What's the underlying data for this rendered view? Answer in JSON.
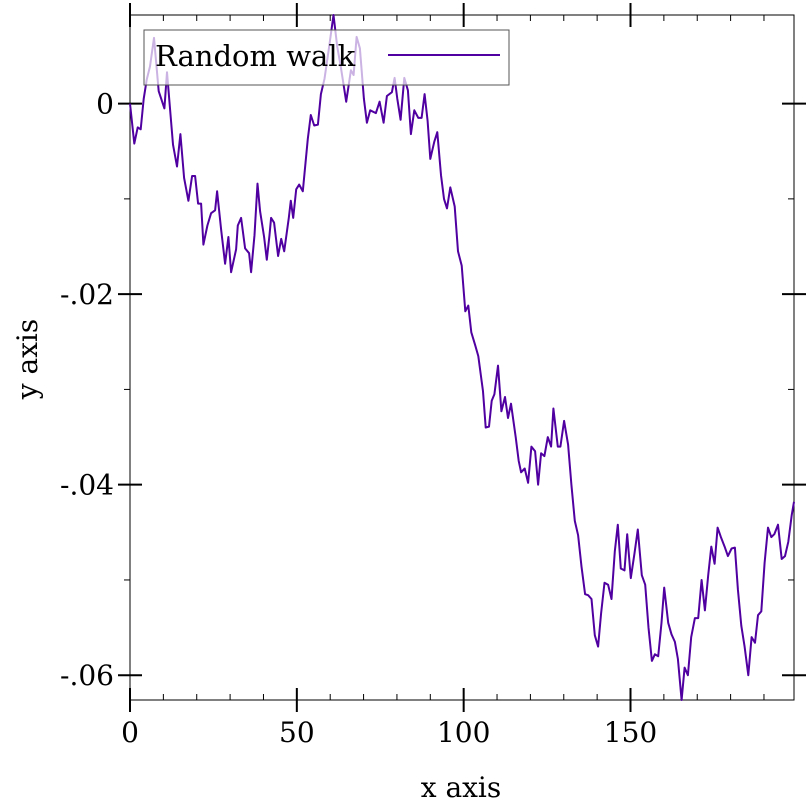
{
  "chart_data": {
    "type": "line",
    "xlabel": "x axis",
    "ylabel": "y axis",
    "xlim": [
      0,
      199
    ],
    "ylim": [
      -0.0626,
      0.0093
    ],
    "x_ticks": [
      {
        "value": 0,
        "label": "0"
      },
      {
        "value": 50,
        "label": "50"
      },
      {
        "value": 100,
        "label": "100"
      },
      {
        "value": 150,
        "label": "150"
      }
    ],
    "y_ticks": [
      {
        "value": 0,
        "label": "0"
      },
      {
        "value": -0.02,
        "label": "-.02"
      },
      {
        "value": -0.04,
        "label": "-.04"
      },
      {
        "value": -0.06,
        "label": "-.06"
      }
    ],
    "x_minor_step": 10,
    "y_minor_step": 0.01,
    "grid": false,
    "legend_position": "top-left",
    "series": [
      {
        "name": "Random walk",
        "color": "#5000a0",
        "points": [
          [
            0.0,
            0.0
          ],
          [
            1.3,
            -0.0042
          ],
          [
            2.3,
            -0.0025
          ],
          [
            3.2,
            -0.0027
          ],
          [
            4.1,
            0.0005
          ],
          [
            5.0,
            0.0025
          ],
          [
            6.0,
            0.0039
          ],
          [
            7.2,
            0.0069
          ],
          [
            8.6,
            0.0013
          ],
          [
            10.3,
            -0.0005
          ],
          [
            11.1,
            0.0033
          ],
          [
            12.9,
            -0.0043
          ],
          [
            14.1,
            -0.0066
          ],
          [
            15.1,
            -0.0032
          ],
          [
            16.2,
            -0.0078
          ],
          [
            17.5,
            -0.0102
          ],
          [
            18.6,
            -0.0076
          ],
          [
            19.5,
            -0.0076
          ],
          [
            20.4,
            -0.0105
          ],
          [
            21.3,
            -0.0105
          ],
          [
            22.0,
            -0.0148
          ],
          [
            23.2,
            -0.0128
          ],
          [
            24.3,
            -0.0115
          ],
          [
            25.5,
            -0.0112
          ],
          [
            26.1,
            -0.0092
          ],
          [
            27.3,
            -0.0132
          ],
          [
            28.5,
            -0.0168
          ],
          [
            29.5,
            -0.014
          ],
          [
            30.3,
            -0.0177
          ],
          [
            31.8,
            -0.0153
          ],
          [
            32.3,
            -0.0128
          ],
          [
            33.3,
            -0.012
          ],
          [
            34.5,
            -0.0152
          ],
          [
            35.7,
            -0.0157
          ],
          [
            36.3,
            -0.0177
          ],
          [
            37.3,
            -0.0138
          ],
          [
            38.2,
            -0.0084
          ],
          [
            39.0,
            -0.0113
          ],
          [
            40.2,
            -0.014
          ],
          [
            41.0,
            -0.0164
          ],
          [
            41.8,
            -0.0138
          ],
          [
            42.3,
            -0.012
          ],
          [
            43.2,
            -0.0125
          ],
          [
            44.4,
            -0.016
          ],
          [
            45.3,
            -0.0142
          ],
          [
            46.2,
            -0.0155
          ],
          [
            47.6,
            -0.012
          ],
          [
            48.2,
            -0.0102
          ],
          [
            48.9,
            -0.012
          ],
          [
            49.8,
            -0.009
          ],
          [
            50.7,
            -0.0085
          ],
          [
            51.8,
            -0.0092
          ],
          [
            53.3,
            -0.0037
          ],
          [
            54.2,
            -0.0012
          ],
          [
            55.2,
            -0.0023
          ],
          [
            56.3,
            -0.0022
          ],
          [
            57.2,
            0.001
          ],
          [
            58.3,
            0.0026
          ],
          [
            59.7,
            0.006
          ],
          [
            61.0,
            0.0093
          ],
          [
            62.1,
            0.006
          ],
          [
            63.2,
            0.0038
          ],
          [
            64.8,
            0.0002
          ],
          [
            66.2,
            0.0035
          ],
          [
            67.0,
            0.003
          ],
          [
            67.9,
            0.007
          ],
          [
            68.9,
            0.0058
          ],
          [
            70.1,
            0.0005
          ],
          [
            71.0,
            -0.002
          ],
          [
            72.0,
            -0.0007
          ],
          [
            73.7,
            -0.001
          ],
          [
            74.8,
            0.0002
          ],
          [
            76.0,
            -0.002
          ],
          [
            77.0,
            0.0008
          ],
          [
            78.5,
            0.0012
          ],
          [
            79.3,
            0.0027
          ],
          [
            80.1,
            0.0005
          ],
          [
            81.1,
            -0.0017
          ],
          [
            82.2,
            0.0027
          ],
          [
            83.3,
            0.0014
          ],
          [
            84.2,
            -0.0032
          ],
          [
            85.2,
            -0.0007
          ],
          [
            86.4,
            -0.0015
          ],
          [
            87.4,
            -0.0015
          ],
          [
            88.3,
            0.001
          ],
          [
            89.2,
            -0.0018
          ],
          [
            90.0,
            -0.0058
          ],
          [
            91.2,
            -0.004
          ],
          [
            92.1,
            -0.003
          ],
          [
            93.2,
            -0.0075
          ],
          [
            94.1,
            -0.01
          ],
          [
            95.0,
            -0.011
          ],
          [
            96.0,
            -0.0088
          ],
          [
            97.3,
            -0.0108
          ],
          [
            98.3,
            -0.0155
          ],
          [
            99.4,
            -0.017
          ],
          [
            100.5,
            -0.0218
          ],
          [
            101.4,
            -0.0212
          ],
          [
            102.3,
            -0.024
          ],
          [
            103.4,
            -0.0253
          ],
          [
            104.4,
            -0.0265
          ],
          [
            105.8,
            -0.0302
          ],
          [
            106.6,
            -0.034
          ],
          [
            107.6,
            -0.0339
          ],
          [
            108.4,
            -0.0312
          ],
          [
            109.2,
            -0.0305
          ],
          [
            110.3,
            -0.0275
          ],
          [
            111.3,
            -0.0323
          ],
          [
            112.4,
            -0.0308
          ],
          [
            113.3,
            -0.033
          ],
          [
            114.2,
            -0.0315
          ],
          [
            115.6,
            -0.035
          ],
          [
            116.5,
            -0.0375
          ],
          [
            117.2,
            -0.0387
          ],
          [
            118.3,
            -0.0383
          ],
          [
            119.3,
            -0.0398
          ],
          [
            120.3,
            -0.036
          ],
          [
            121.4,
            -0.0365
          ],
          [
            122.3,
            -0.04
          ],
          [
            123.2,
            -0.0367
          ],
          [
            124.2,
            -0.037
          ],
          [
            125.2,
            -0.035
          ],
          [
            126.2,
            -0.036
          ],
          [
            126.9,
            -0.032
          ],
          [
            128.2,
            -0.036
          ],
          [
            129.0,
            -0.036
          ],
          [
            130.1,
            -0.0333
          ],
          [
            131.3,
            -0.0358
          ],
          [
            132.3,
            -0.04
          ],
          [
            133.3,
            -0.0438
          ],
          [
            134.3,
            -0.0453
          ],
          [
            135.3,
            -0.0486
          ],
          [
            136.4,
            -0.0515
          ],
          [
            137.3,
            -0.0516
          ],
          [
            138.3,
            -0.052
          ],
          [
            139.3,
            -0.0558
          ],
          [
            140.3,
            -0.057
          ],
          [
            141.2,
            -0.0535
          ],
          [
            142.2,
            -0.0503
          ],
          [
            143.3,
            -0.0505
          ],
          [
            144.3,
            -0.052
          ],
          [
            145.3,
            -0.047
          ],
          [
            146.2,
            -0.0442
          ],
          [
            147.1,
            -0.0488
          ],
          [
            148.2,
            -0.049
          ],
          [
            149.0,
            -0.0452
          ],
          [
            150.1,
            -0.0498
          ],
          [
            151.2,
            -0.0472
          ],
          [
            152.2,
            -0.0447
          ],
          [
            153.4,
            -0.0495
          ],
          [
            154.4,
            -0.0505
          ],
          [
            155.4,
            -0.055
          ],
          [
            156.4,
            -0.0585
          ],
          [
            157.3,
            -0.0578
          ],
          [
            158.3,
            -0.058
          ],
          [
            159.3,
            -0.0545
          ],
          [
            160.1,
            -0.0508
          ],
          [
            161.3,
            -0.0545
          ],
          [
            162.3,
            -0.0557
          ],
          [
            163.3,
            -0.0565
          ],
          [
            164.2,
            -0.0583
          ],
          [
            165.3,
            -0.0626
          ],
          [
            166.2,
            -0.0592
          ],
          [
            167.2,
            -0.06
          ],
          [
            168.2,
            -0.056
          ],
          [
            169.3,
            -0.054
          ],
          [
            170.3,
            -0.054
          ],
          [
            171.3,
            -0.05
          ],
          [
            172.3,
            -0.0532
          ],
          [
            173.3,
            -0.0495
          ],
          [
            174.2,
            -0.0465
          ],
          [
            175.2,
            -0.0483
          ],
          [
            176.1,
            -0.0445
          ],
          [
            177.1,
            -0.0455
          ],
          [
            178.2,
            -0.0465
          ],
          [
            179.2,
            -0.0475
          ],
          [
            180.3,
            -0.0467
          ],
          [
            181.3,
            -0.0466
          ],
          [
            182.2,
            -0.051
          ],
          [
            183.2,
            -0.0548
          ],
          [
            184.2,
            -0.057
          ],
          [
            185.3,
            -0.06
          ],
          [
            186.3,
            -0.056
          ],
          [
            187.3,
            -0.0566
          ],
          [
            188.2,
            -0.0537
          ],
          [
            189.2,
            -0.0533
          ],
          [
            190.2,
            -0.0482
          ],
          [
            191.2,
            -0.0445
          ],
          [
            192.2,
            -0.0455
          ],
          [
            193.1,
            -0.0452
          ],
          [
            194.2,
            -0.0442
          ],
          [
            195.3,
            -0.0478
          ],
          [
            196.3,
            -0.0475
          ],
          [
            197.3,
            -0.046
          ],
          [
            198.3,
            -0.0432
          ],
          [
            199.0,
            -0.0418
          ]
        ]
      }
    ]
  }
}
